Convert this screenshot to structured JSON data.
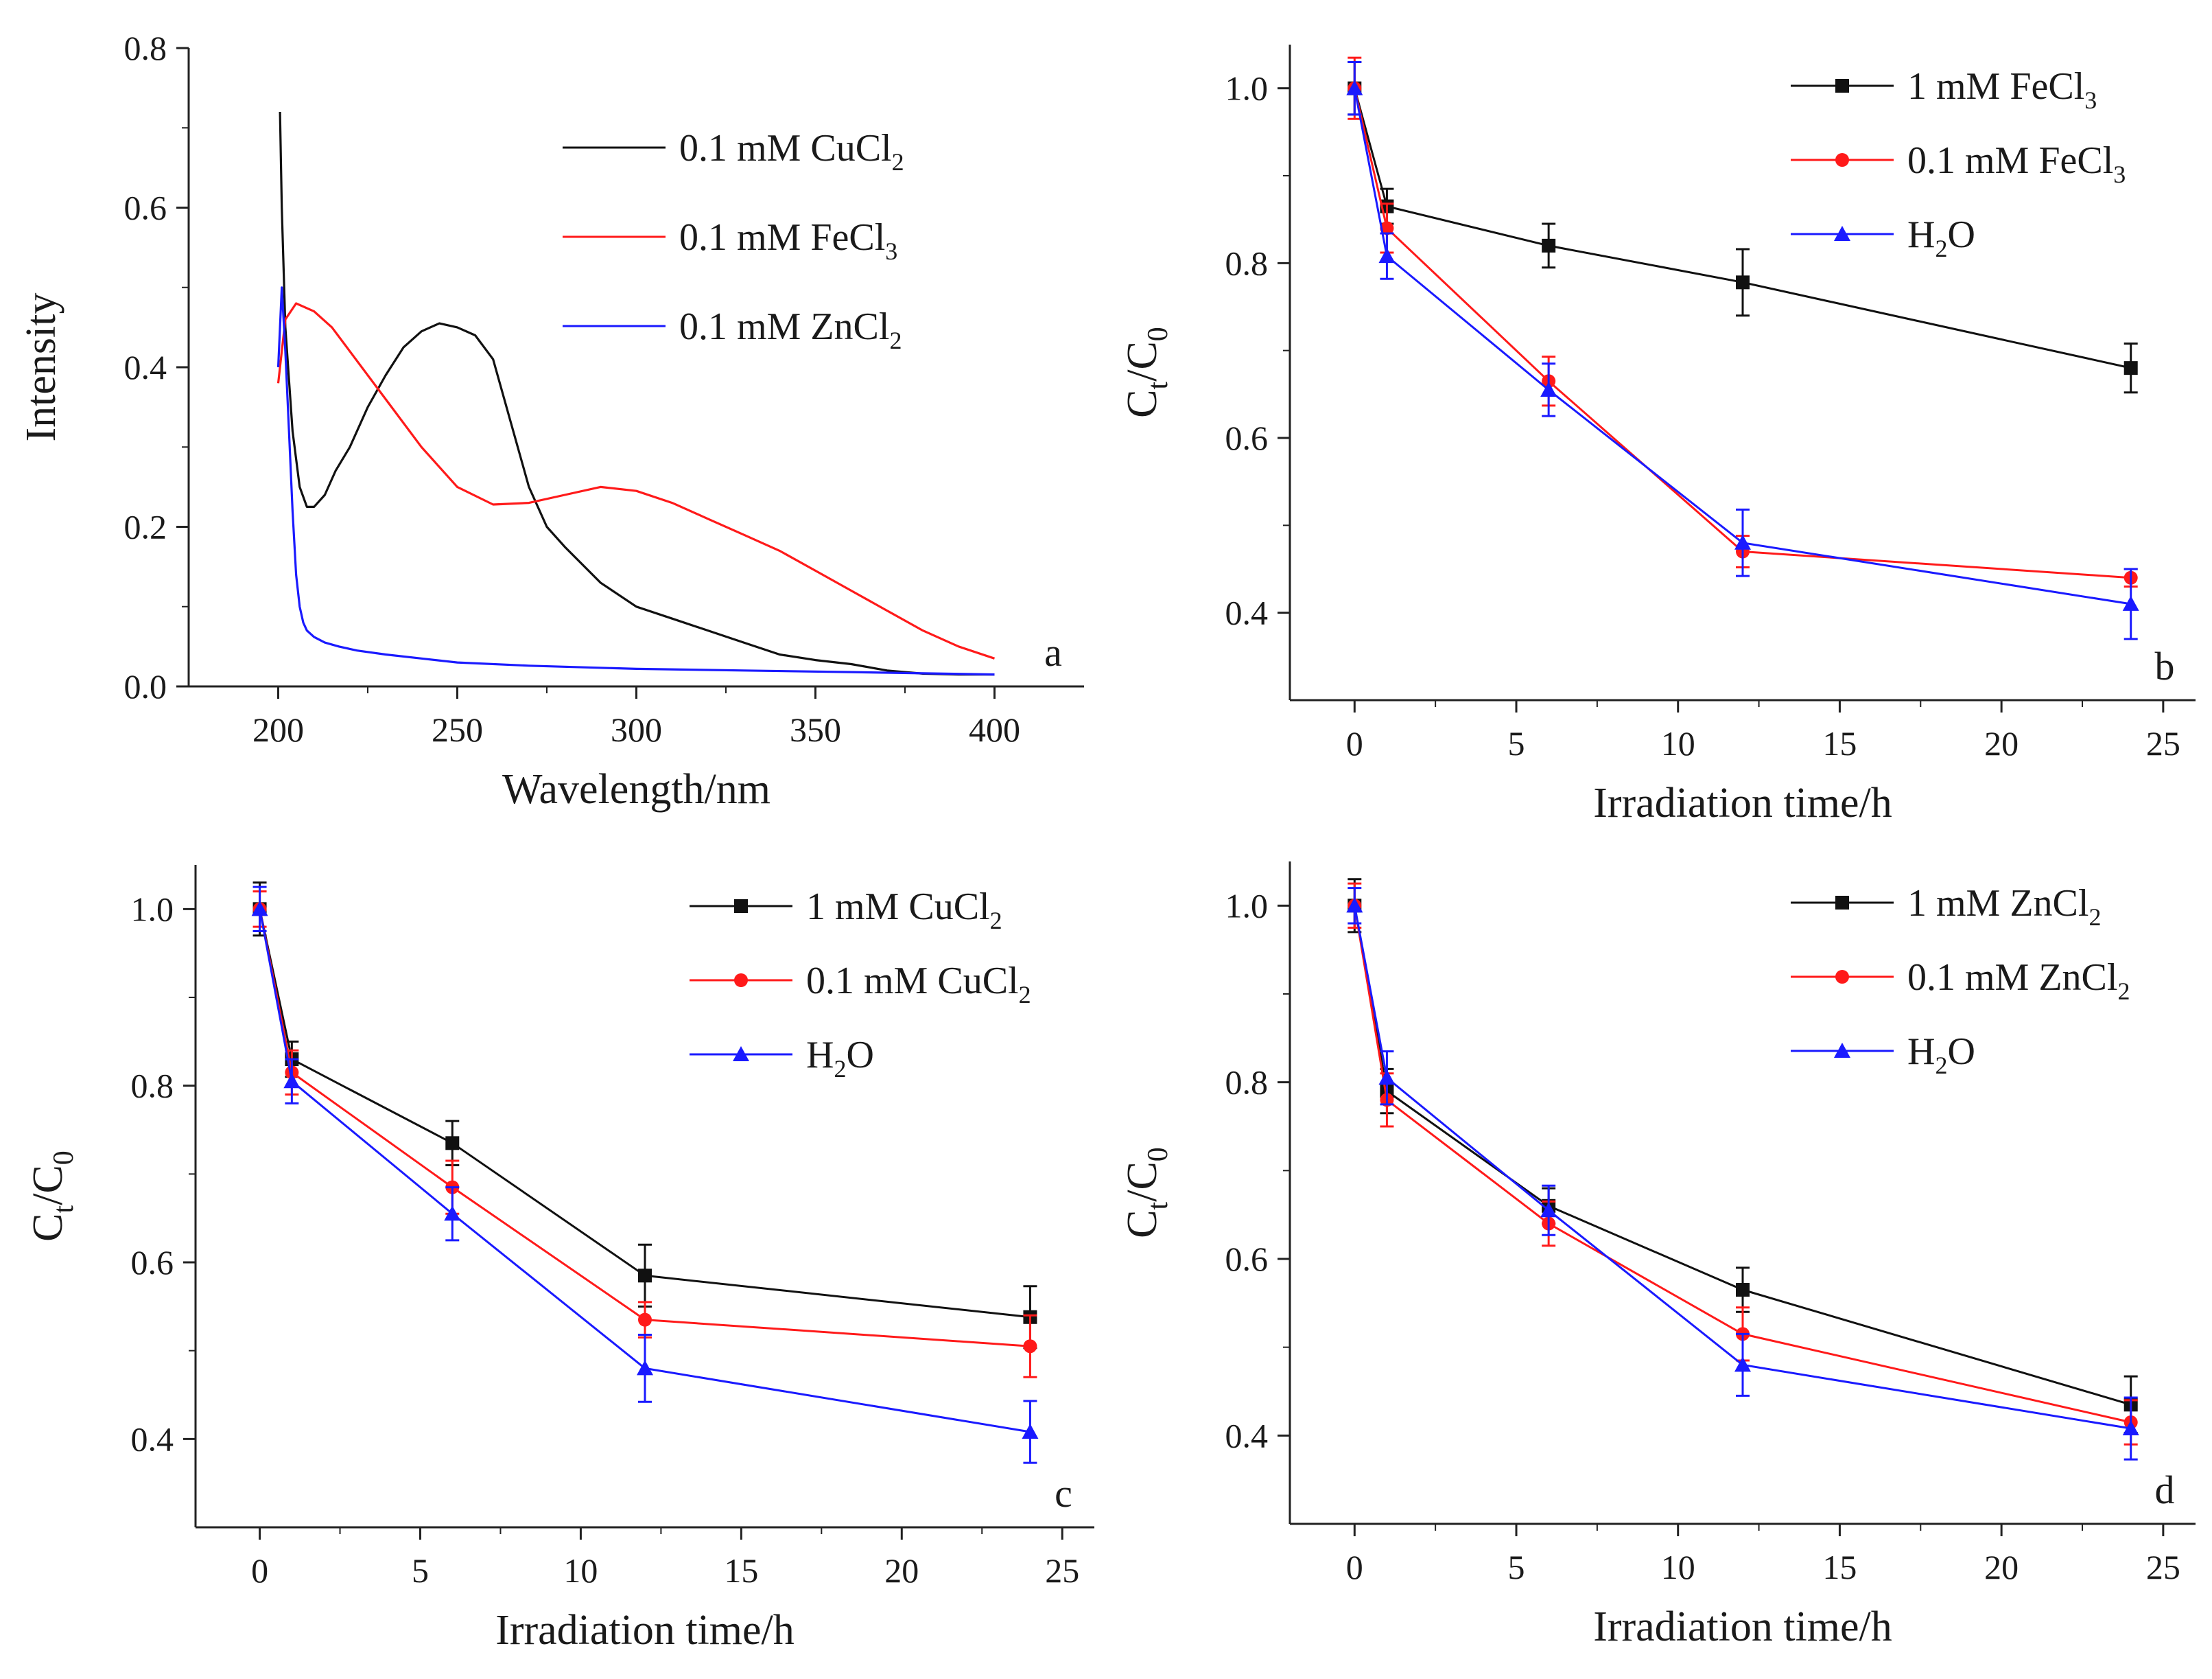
{
  "colors": {
    "black": "#111111",
    "red": "#ff1a1a",
    "blue": "#1a1aff",
    "axis": "#222222"
  },
  "chart_data": [
    {
      "panel_id": "a",
      "type": "line",
      "title": "",
      "panel_label": "a",
      "xlabel": "Wavelength/nm",
      "ylabel": "Intensity",
      "xlim": [
        175,
        425
      ],
      "ylim": [
        0.0,
        0.8
      ],
      "xticks": [
        200,
        250,
        300,
        350,
        400
      ],
      "yticks": [
        0.0,
        0.2,
        0.4,
        0.6,
        0.8
      ],
      "ytick_decimals": 1,
      "grid": false,
      "legend_position": "top-right",
      "series": [
        {
          "name": "0.1 mM CuCl2",
          "legend": {
            "main": "0.1 mM CuCl",
            "sub": "2"
          },
          "color": "#111111",
          "marker": "none",
          "x": [
            200.5,
            201,
            202,
            204,
            206,
            208,
            210,
            213,
            216,
            220,
            225,
            230,
            235,
            240,
            245,
            250,
            255,
            260,
            265,
            270,
            275,
            280,
            290,
            300,
            310,
            320,
            330,
            340,
            350,
            360,
            370,
            380,
            390,
            400
          ],
          "y": [
            0.72,
            0.6,
            0.45,
            0.32,
            0.25,
            0.225,
            0.225,
            0.24,
            0.27,
            0.3,
            0.35,
            0.39,
            0.425,
            0.445,
            0.455,
            0.45,
            0.44,
            0.41,
            0.33,
            0.25,
            0.2,
            0.175,
            0.13,
            0.1,
            0.085,
            0.07,
            0.055,
            0.04,
            0.033,
            0.028,
            0.02,
            0.016,
            0.015,
            0.015
          ]
        },
        {
          "name": "0.1 mM FeCl3",
          "legend": {
            "main": "0.1 mM FeCl",
            "sub": "3"
          },
          "color": "#ff1a1a",
          "marker": "none",
          "x": [
            200,
            202,
            205,
            210,
            215,
            220,
            230,
            240,
            250,
            260,
            270,
            280,
            290,
            300,
            310,
            320,
            330,
            340,
            350,
            360,
            370,
            380,
            390,
            400
          ],
          "y": [
            0.38,
            0.46,
            0.48,
            0.47,
            0.45,
            0.42,
            0.36,
            0.3,
            0.25,
            0.228,
            0.23,
            0.24,
            0.25,
            0.245,
            0.23,
            0.21,
            0.19,
            0.17,
            0.145,
            0.12,
            0.095,
            0.07,
            0.05,
            0.035
          ]
        },
        {
          "name": "0.1 mM ZnCl2",
          "legend": {
            "main": "0.1 mM ZnCl",
            "sub": "2"
          },
          "color": "#1a1aff",
          "marker": "none",
          "x": [
            200,
            201,
            202,
            203,
            204,
            205,
            206,
            207,
            208,
            210,
            213,
            217,
            222,
            230,
            240,
            250,
            270,
            300,
            330,
            360,
            400
          ],
          "y": [
            0.4,
            0.5,
            0.42,
            0.32,
            0.22,
            0.14,
            0.1,
            0.08,
            0.07,
            0.062,
            0.055,
            0.05,
            0.045,
            0.04,
            0.035,
            0.03,
            0.026,
            0.022,
            0.02,
            0.018,
            0.015
          ]
        }
      ]
    },
    {
      "panel_id": "b",
      "type": "line",
      "title": "",
      "panel_label": "b",
      "xlabel": "Irradiation time/h",
      "ylabel": {
        "main": "C",
        "sub1": "t",
        "slash": "/C",
        "sub2": "0"
      },
      "xlim": [
        -2,
        26
      ],
      "ylim": [
        0.3,
        1.05
      ],
      "xticks": [
        0,
        5,
        10,
        15,
        20,
        25
      ],
      "yticks": [
        0.4,
        0.6,
        0.8,
        1.0
      ],
      "ytick_decimals": 1,
      "grid": false,
      "legend_position": "top-right",
      "series": [
        {
          "name": "1 mM FeCl3",
          "legend": {
            "main": "1 mM     FeCl",
            "sub": "3"
          },
          "color": "#111111",
          "marker": "square",
          "x": [
            0,
            1,
            6,
            12,
            24
          ],
          "y": [
            1.0,
            0.865,
            0.82,
            0.778,
            0.68
          ],
          "err": [
            0.03,
            0.02,
            0.025,
            0.038,
            0.028
          ]
        },
        {
          "name": "0.1 mM FeCl3",
          "legend": {
            "main": "0.1 mM  FeCl",
            "sub": "3"
          },
          "color": "#ff1a1a",
          "marker": "circle",
          "x": [
            0,
            1,
            6,
            12,
            24
          ],
          "y": [
            1.0,
            0.84,
            0.665,
            0.47,
            0.44
          ],
          "err": [
            0.035,
            0.028,
            0.028,
            0.018,
            0.01
          ]
        },
        {
          "name": "H2O",
          "legend": {
            "main": "H",
            "sub": "2",
            "tail": "O"
          },
          "color": "#1a1aff",
          "marker": "triangle",
          "x": [
            0,
            1,
            6,
            12,
            24
          ],
          "y": [
            1.0,
            0.808,
            0.655,
            0.48,
            0.41
          ],
          "err": [
            0.03,
            0.026,
            0.03,
            0.038,
            0.04
          ]
        }
      ]
    },
    {
      "panel_id": "c",
      "type": "line",
      "title": "",
      "panel_label": "c",
      "xlabel": "Irradiation time/h",
      "ylabel": {
        "main": "C",
        "sub1": "t",
        "slash": "/C",
        "sub2": "0"
      },
      "xlim": [
        -2,
        26
      ],
      "ylim": [
        0.3,
        1.05
      ],
      "xticks": [
        0,
        5,
        10,
        15,
        20,
        25
      ],
      "yticks": [
        0.4,
        0.6,
        0.8,
        1.0
      ],
      "ytick_decimals": 1,
      "grid": false,
      "legend_position": "top-right",
      "series": [
        {
          "name": "1 mM CuCl2",
          "legend": {
            "main": "1 mM     CuCl",
            "sub": "2"
          },
          "color": "#111111",
          "marker": "square",
          "x": [
            0,
            1,
            6,
            12,
            24
          ],
          "y": [
            1.0,
            0.83,
            0.735,
            0.585,
            0.538
          ],
          "err": [
            0.03,
            0.02,
            0.025,
            0.035,
            0.035
          ]
        },
        {
          "name": "0.1 mM CuCl2",
          "legend": {
            "main": "0.1 mM CuCl",
            "sub": "2"
          },
          "color": "#ff1a1a",
          "marker": "circle",
          "x": [
            0,
            1,
            6,
            12,
            24
          ],
          "y": [
            1.0,
            0.815,
            0.685,
            0.535,
            0.505
          ],
          "err": [
            0.02,
            0.025,
            0.03,
            0.02,
            0.035
          ]
        },
        {
          "name": "H2O",
          "legend": {
            "main": "H",
            "sub": "2",
            "tail": "O"
          },
          "color": "#1a1aff",
          "marker": "triangle",
          "x": [
            0,
            1,
            6,
            12,
            24
          ],
          "y": [
            1.0,
            0.805,
            0.655,
            0.48,
            0.408
          ],
          "err": [
            0.025,
            0.025,
            0.03,
            0.038,
            0.035
          ]
        }
      ]
    },
    {
      "panel_id": "d",
      "type": "line",
      "title": "",
      "panel_label": "d",
      "xlabel": "Irradiation time/h",
      "ylabel": {
        "main": "C",
        "sub1": "t",
        "slash": "/C",
        "sub2": "0"
      },
      "xlim": [
        -2,
        26
      ],
      "ylim": [
        0.3,
        1.05
      ],
      "xticks": [
        0,
        5,
        10,
        15,
        20,
        25
      ],
      "yticks": [
        0.4,
        0.6,
        0.8,
        1.0
      ],
      "ytick_decimals": 1,
      "grid": false,
      "legend_position": "top-right",
      "series": [
        {
          "name": "1 mM ZnCl2",
          "legend": {
            "main": "1 mM     ZnCl",
            "sub": "2"
          },
          "color": "#111111",
          "marker": "square",
          "x": [
            0,
            1,
            6,
            12,
            24
          ],
          "y": [
            1.0,
            0.79,
            0.66,
            0.565,
            0.435
          ],
          "err": [
            0.03,
            0.025,
            0.02,
            0.025,
            0.032
          ]
        },
        {
          "name": "0.1 mM ZnCl2",
          "legend": {
            "main": "0.1 mM ZnCl",
            "sub": "2"
          },
          "color": "#ff1a1a",
          "marker": "circle",
          "x": [
            0,
            1,
            6,
            12,
            24
          ],
          "y": [
            1.0,
            0.78,
            0.64,
            0.515,
            0.415
          ],
          "err": [
            0.025,
            0.03,
            0.025,
            0.03,
            0.025
          ]
        },
        {
          "name": "H2O",
          "legend": {
            "main": "H",
            "sub": "2",
            "tail": "O"
          },
          "color": "#1a1aff",
          "marker": "triangle",
          "x": [
            0,
            1,
            6,
            12,
            24
          ],
          "y": [
            1.0,
            0.805,
            0.655,
            0.48,
            0.408
          ],
          "err": [
            0.02,
            0.03,
            0.028,
            0.035,
            0.035
          ]
        }
      ]
    }
  ]
}
